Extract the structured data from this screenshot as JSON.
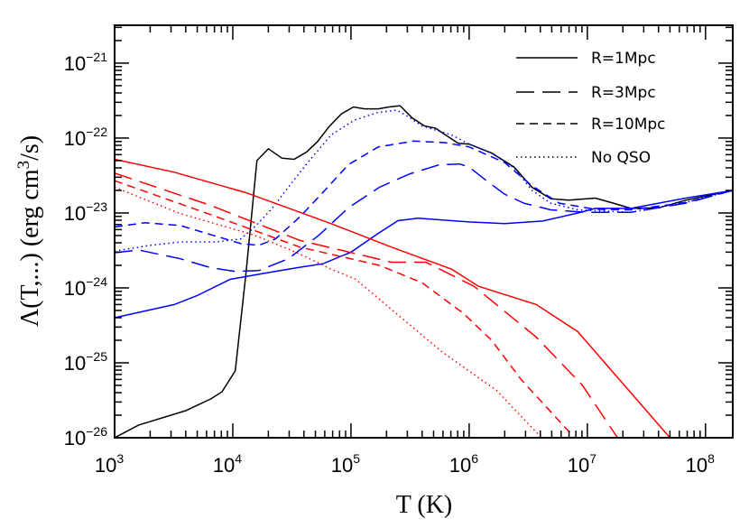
{
  "chart_data": {
    "type": "line",
    "title": "",
    "xlabel": "T (K)",
    "ylabel": {
      "main": "Λ(T,...)  (erg cm",
      "sup": "3",
      "tail": "/s)"
    },
    "xscale": "log",
    "yscale": "log",
    "xlim": [
      1000.0,
      170000000.0
    ],
    "ylim": [
      1e-26,
      3.2e-21
    ],
    "grid": false,
    "legend_position": "top-right",
    "xticks": [
      {
        "base": "10",
        "exp": "3",
        "value": 1000.0
      },
      {
        "base": "10",
        "exp": "4",
        "value": 10000.0
      },
      {
        "base": "10",
        "exp": "5",
        "value": 100000.0
      },
      {
        "base": "10",
        "exp": "6",
        "value": 1000000.0
      },
      {
        "base": "10",
        "exp": "7",
        "value": 10000000.0
      },
      {
        "base": "10",
        "exp": "8",
        "value": 100000000.0
      }
    ],
    "yticks": [
      {
        "base": "10",
        "exp": "−26",
        "value": 1e-26
      },
      {
        "base": "10",
        "exp": "−25",
        "value": 1e-25
      },
      {
        "base": "10",
        "exp": "−24",
        "value": 1e-24
      },
      {
        "base": "10",
        "exp": "−23",
        "value": 1e-23
      },
      {
        "base": "10",
        "exp": "−22",
        "value": 1e-22
      },
      {
        "base": "10",
        "exp": "−21",
        "value": 1e-21
      }
    ],
    "legend": [
      {
        "label": "R=1Mpc",
        "style": "solid"
      },
      {
        "label": "R=3Mpc",
        "style": "longdash"
      },
      {
        "label": "R=10Mpc",
        "style": "shortdash"
      },
      {
        "label": "No QSO",
        "style": "dotted"
      }
    ],
    "colors": {
      "black": "#000000",
      "blue": "#0000ff",
      "red": "#ff0000"
    },
    "series": [
      {
        "color": "#000000",
        "style": "solid",
        "x": [
          1000.0,
          1600.0,
          4000.0,
          6500.0,
          8100.0,
          10500.0,
          13000.0,
          16000.0,
          20000.0,
          26000.0,
          33000.0,
          42000.0,
          52000.0,
          66000.0,
          83000.0,
          105000.0,
          130000.0,
          170000.0,
          210000.0,
          260000.0,
          330000.0,
          420000.0,
          520000.0,
          660000.0,
          810000.0,
          1000000.0,
          1550000.0,
          2400000.0,
          3400000.0,
          4900000.0,
          6900000.0,
          11700000.0,
          16600000.0,
          23400000.0,
          40000000.0,
          68000000.0,
          170000000.0
        ],
        "y": [
          1e-26,
          1.48e-26,
          2.3e-26,
          3.3e-26,
          4.1e-26,
          7.8e-26,
          1.7e-24,
          5e-23,
          7.2e-23,
          5.4e-23,
          5.2e-23,
          6.5e-23,
          8.9e-23,
          1.45e-22,
          2.1e-22,
          2.6e-22,
          2.45e-22,
          2.45e-22,
          2.6e-22,
          2.7e-22,
          1.85e-22,
          1.45e-22,
          1.35e-22,
          1.05e-22,
          8.5e-23,
          8.3e-23,
          6.3e-23,
          4.1e-23,
          2.2e-23,
          1.55e-23,
          1.48e-23,
          1.58e-23,
          1.35e-23,
          1.15e-23,
          1.17e-23,
          1.48e-23,
          2e-23
        ]
      },
      {
        "color": "#0000ff",
        "style": "solid",
        "x": [
          1000.0,
          3200.0,
          5000.0,
          9500.0,
          19000.0,
          35000.0,
          58000.0,
          100000.0,
          166000.0,
          250000.0,
          370000.0,
          1000000.0,
          2000000.0,
          4200000.0,
          8300000.0,
          11700000.0,
          23400000.0,
          68000000.0,
          170000000.0
        ],
        "y": [
          4e-25,
          6e-25,
          7.9e-25,
          1.3e-24,
          1.58e-24,
          1.86e-24,
          2.1e-24,
          3e-24,
          5.2e-24,
          7.9e-24,
          8.5e-24,
          7.6e-24,
          7.2e-24,
          7.8e-24,
          1e-23,
          1.15e-23,
          1.15e-23,
          1.58e-23,
          2e-23
        ]
      },
      {
        "color": "#0000ff",
        "style": "longdash",
        "x": [
          1000.0,
          1600.0,
          3600.0,
          6500.0,
          10500.0,
          16600.0,
          29500.0,
          54000.0,
          95000.0,
          174000.0,
          310000.0,
          560000.0,
          830000.0,
          1000000.0,
          1400000.0,
          2000000.0,
          2900000.0,
          4900000.0,
          9800000.0,
          23400000.0,
          68000000.0,
          170000000.0
        ],
        "y": [
          2.95e-24,
          3.2e-24,
          2.45e-24,
          1.86e-24,
          1.66e-24,
          1.7e-24,
          2.45e-24,
          5.1e-24,
          1.17e-23,
          2.2e-23,
          3.3e-23,
          4.4e-23,
          4.5e-23,
          4.1e-23,
          2.7e-23,
          1.78e-23,
          1.35e-23,
          1.1e-23,
          1.02e-23,
          1.02e-23,
          1.35e-23,
          2e-23
        ]
      },
      {
        "color": "#0000ff",
        "style": "shortdash",
        "x": [
          1000.0,
          1800.0,
          3600.0,
          7200.0,
          11700.0,
          16600.0,
          23000.0,
          37000.0,
          60000.0,
          95000.0,
          170000.0,
          340000.0,
          620000.0,
          1000000.0,
          2000000.0,
          3400000.0,
          5800000.0,
          11700000.0,
          23400000.0,
          68000000.0,
          170000000.0
        ],
        "y": [
          6.5e-24,
          7.4e-24,
          6.8e-24,
          4.9e-24,
          3.9e-24,
          3.7e-24,
          4.5e-24,
          8.9e-24,
          2e-23,
          4.4e-23,
          7.6e-23,
          9.1e-23,
          8.7e-23,
          7.6e-23,
          4.7e-23,
          2.3e-23,
          1.35e-23,
          1.12e-23,
          1.1e-23,
          1.38e-23,
          2e-23
        ]
      },
      {
        "color": "#0000ff",
        "style": "dotted",
        "x": [
          1000.0,
          2000.0,
          3600.0,
          7200.0,
          11700.0,
          15000.0,
          21000.0,
          29500.0,
          43000.0,
          68000.0,
          107000.0,
          170000.0,
          245000.0,
          310000.0,
          400000.0,
          710000.0,
          1000000.0,
          1550000.0,
          2400000.0,
          3400000.0,
          4900000.0,
          8300000.0,
          23400000.0,
          68000000.0,
          170000000.0
        ],
        "y": [
          3.1e-24,
          3.7e-24,
          4.1e-24,
          4.1e-24,
          4.5e-24,
          6.3e-24,
          1.1e-23,
          2.2e-23,
          4.7e-23,
          1.1e-22,
          1.74e-22,
          2.2e-22,
          2.35e-22,
          1.9e-22,
          1.45e-22,
          1.1e-22,
          8.3e-23,
          6.3e-23,
          4e-23,
          2e-23,
          1.35e-23,
          1.1e-23,
          1.02e-23,
          1.38e-23,
          2e-23
        ]
      },
      {
        "color": "#ff0000",
        "style": "solid",
        "x": [
          1000.0,
          3200.0,
          13000.0,
          68000.0,
          220000.0,
          710000.0,
          1200000.0,
          3700000.0,
          8300000.0,
          18600000.0,
          50000000.0
        ],
        "y": [
          5.2e-23,
          3.5e-23,
          1.86e-23,
          7.2e-24,
          3.5e-24,
          1.78e-24,
          1.05e-24,
          6e-25,
          2.6e-25,
          6e-26,
          1e-26
        ]
      },
      {
        "color": "#ff0000",
        "style": "longdash",
        "x": [
          1000.0,
          6500.0,
          37000.0,
          220000.0,
          430000.0,
          1100000.0,
          3700000.0,
          9100000.0,
          18000000.0
        ],
        "y": [
          3.4e-23,
          1.26e-23,
          4.3e-24,
          2.2e-24,
          2.2e-24,
          1.05e-24,
          2.2e-25,
          5e-26,
          1e-26
        ]
      },
      {
        "color": "#ff0000",
        "style": "shortdash",
        "x": [
          1000.0,
          6500.0,
          37000.0,
          174000.0,
          400000.0,
          890000.0,
          1550000.0,
          2750000.0,
          7800000.0
        ],
        "y": [
          2.7e-23,
          9.5e-24,
          3.5e-24,
          2e-24,
          1.17e-24,
          4.6e-25,
          2e-25,
          6e-26,
          1e-26
        ]
      },
      {
        "color": "#ff0000",
        "style": "dotted",
        "x": [
          1000.0,
          3600.0,
          15000.0,
          35000.0,
          68000.0,
          110000.0,
          240000.0,
          590000.0,
          1700000.0,
          4100000.0
        ],
        "y": [
          2.2e-23,
          9.8e-24,
          5.1e-24,
          2.95e-24,
          1.78e-24,
          1.3e-24,
          4.6e-25,
          1.4e-25,
          4.3e-26,
          1e-26
        ]
      }
    ]
  }
}
